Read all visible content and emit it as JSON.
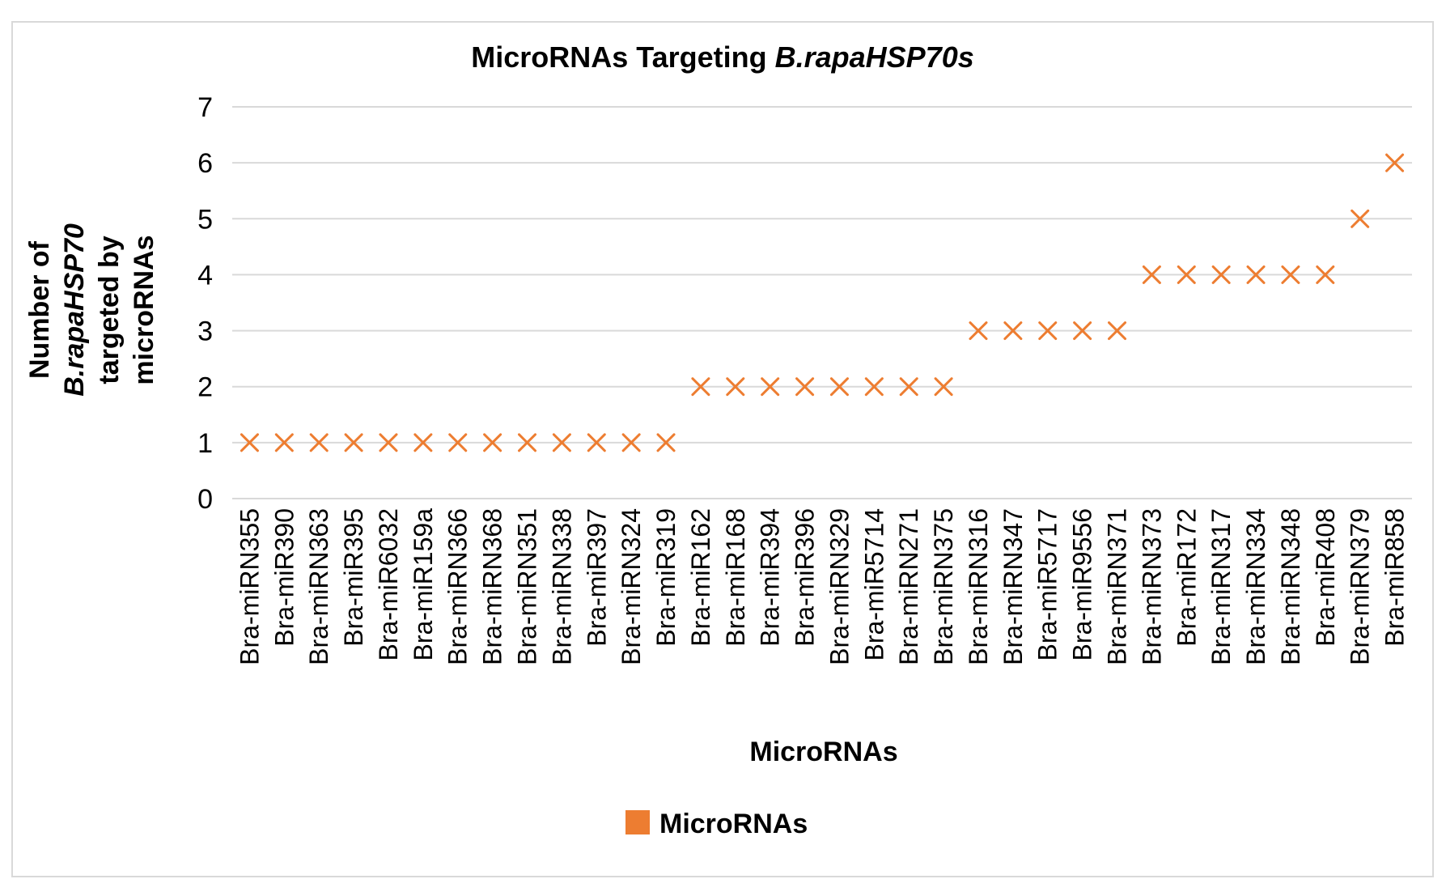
{
  "chart_data": {
    "type": "scatter",
    "title_prefix": "MicroRNAs Targeting ",
    "title_italic": "B.rapaHSP70s",
    "xlabel": "MicroRNAs",
    "ylabel_line1": "Number of",
    "ylabel_line2_italic": "B.rapaHSP70",
    "ylabel_line3": "targeted by",
    "ylabel_line4": "microRNAs",
    "ylim": [
      0,
      7
    ],
    "yticks": [
      0,
      1,
      2,
      3,
      4,
      5,
      6,
      7
    ],
    "grid": true,
    "legend_position": "bottom",
    "marker": "x",
    "series": [
      {
        "name": "MicroRNAs",
        "color": "#ED7D31",
        "values": [
          1,
          1,
          1,
          1,
          1,
          1,
          1,
          1,
          1,
          1,
          1,
          1,
          1,
          2,
          2,
          2,
          2,
          2,
          2,
          2,
          2,
          3,
          3,
          3,
          3,
          3,
          4,
          4,
          4,
          4,
          4,
          4,
          5,
          6
        ]
      }
    ],
    "categories": [
      "Bra-miRN355",
      "Bra-miR390",
      "Bra-miRN363",
      "Bra-miR395",
      "Bra-miR6032",
      "Bra-miR159a",
      "Bra-miRN366",
      "Bra-miRN368",
      "Bra-miRN351",
      "Bra-miRN338",
      "Bra-miR397",
      "Bra-miRN324",
      "Bra-miR319",
      "Bra-miR162",
      "Bra-miR168",
      "Bra-miR394",
      "Bra-miR396",
      "Bra-miRN329",
      "Bra-miR5714",
      "Bra-miRN271",
      "Bra-miRN375",
      "Bra-miRN316",
      "Bra-miRN347",
      "Bra-miR5717",
      "Bra-miR9556",
      "Bra-miRN371",
      "Bra-miRN373",
      "Bra-miR172",
      "Bra-miRN317",
      "Bra-miRN334",
      "Bra-miRN348",
      "Bra-miR408",
      "Bra-miRN379",
      "Bra-miR858"
    ]
  }
}
